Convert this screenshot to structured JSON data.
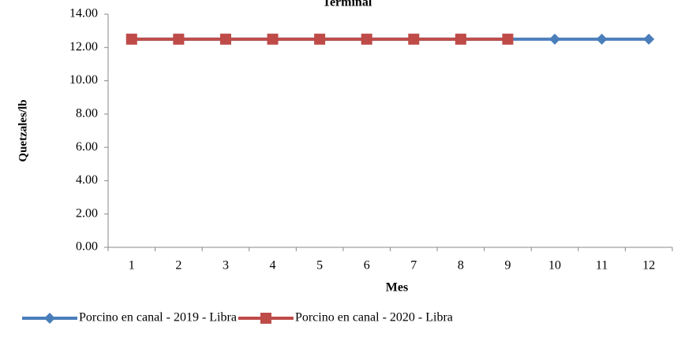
{
  "chart_data": {
    "type": "line",
    "title": "Terminal",
    "x_label": "Mes",
    "y_label": "Quetzales/lb",
    "categories": [
      "1",
      "2",
      "3",
      "4",
      "5",
      "6",
      "7",
      "8",
      "9",
      "10",
      "11",
      "12"
    ],
    "series": [
      {
        "name": "Porcino en canal - 2019 - Libra",
        "color": "#4a7ebb",
        "marker": "diamond",
        "values": [
          12.5,
          12.5,
          12.5,
          12.5,
          12.5,
          12.5,
          12.5,
          12.5,
          12.5,
          12.5,
          12.5,
          12.5
        ]
      },
      {
        "name": "Porcino en canal - 2020 - Libra",
        "color": "#be4b48",
        "marker": "square",
        "values": [
          12.5,
          12.5,
          12.5,
          12.5,
          12.5,
          12.5,
          12.5,
          12.5,
          12.5,
          null,
          null,
          null
        ]
      }
    ],
    "ylim": [
      0,
      14
    ],
    "yticks": [
      {
        "value": 0,
        "label": "0.00"
      },
      {
        "value": 2,
        "label": "2.00"
      },
      {
        "value": 4,
        "label": "4.00"
      },
      {
        "value": 6,
        "label": "6.00"
      },
      {
        "value": 8,
        "label": "8.00"
      },
      {
        "value": 10,
        "label": "10.00"
      },
      {
        "value": 12,
        "label": "12.00"
      },
      {
        "value": 14,
        "label": "14.00"
      }
    ],
    "grid": false,
    "legend": "bottom"
  }
}
